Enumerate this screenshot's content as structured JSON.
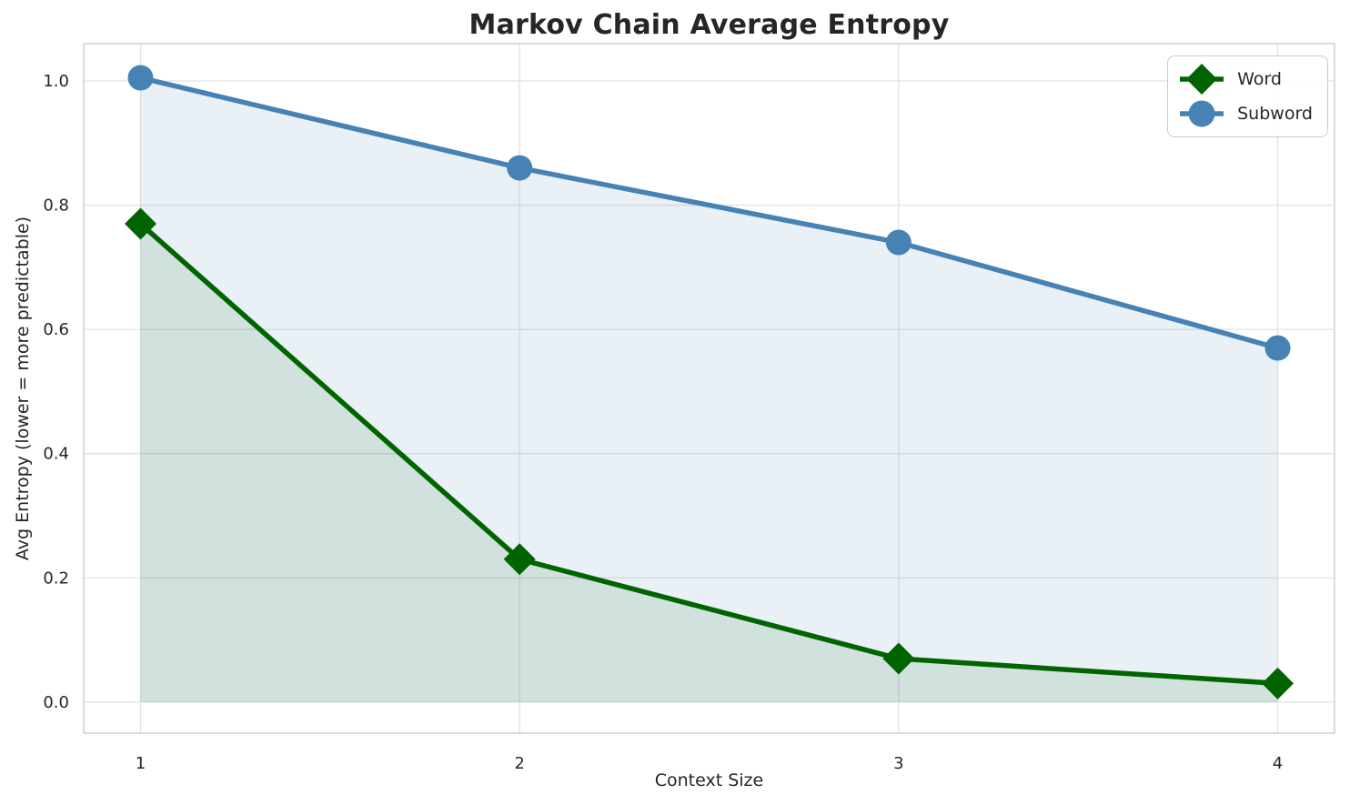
{
  "chart_data": {
    "type": "line",
    "title": "Markov Chain Average Entropy",
    "xlabel": "Context Size",
    "ylabel": "Avg Entropy (lower = more predictable)",
    "x": [
      1,
      2,
      3,
      4
    ],
    "series": [
      {
        "name": "Word",
        "values": [
          0.77,
          0.23,
          0.07,
          0.03
        ],
        "color": "#006400",
        "fill_color": "rgba(0,100,0,0.10)",
        "marker": "diamond"
      },
      {
        "name": "Subword",
        "values": [
          1.005,
          0.86,
          0.74,
          0.57
        ],
        "color": "#4682b4",
        "fill_color": "rgba(70,130,180,0.12)",
        "marker": "circle"
      }
    ],
    "fill_to_zero": true,
    "xlim": [
      0.85,
      4.15
    ],
    "ylim": [
      -0.05,
      1.06
    ],
    "xticks": {
      "values": [
        1,
        2,
        3,
        4
      ],
      "labels": [
        "1",
        "2",
        "3",
        "4"
      ]
    },
    "yticks": {
      "values": [
        0.0,
        0.2,
        0.4,
        0.6,
        0.8,
        1.0
      ],
      "labels": [
        "0.0",
        "0.2",
        "0.4",
        "0.6",
        "0.8",
        "1.0"
      ]
    },
    "grid": true,
    "legend_position": "upper right",
    "colors": {
      "grid": "#e2e2e2",
      "axes_border": "#cccccc",
      "text": "#262626",
      "background": "#ffffff"
    }
  }
}
